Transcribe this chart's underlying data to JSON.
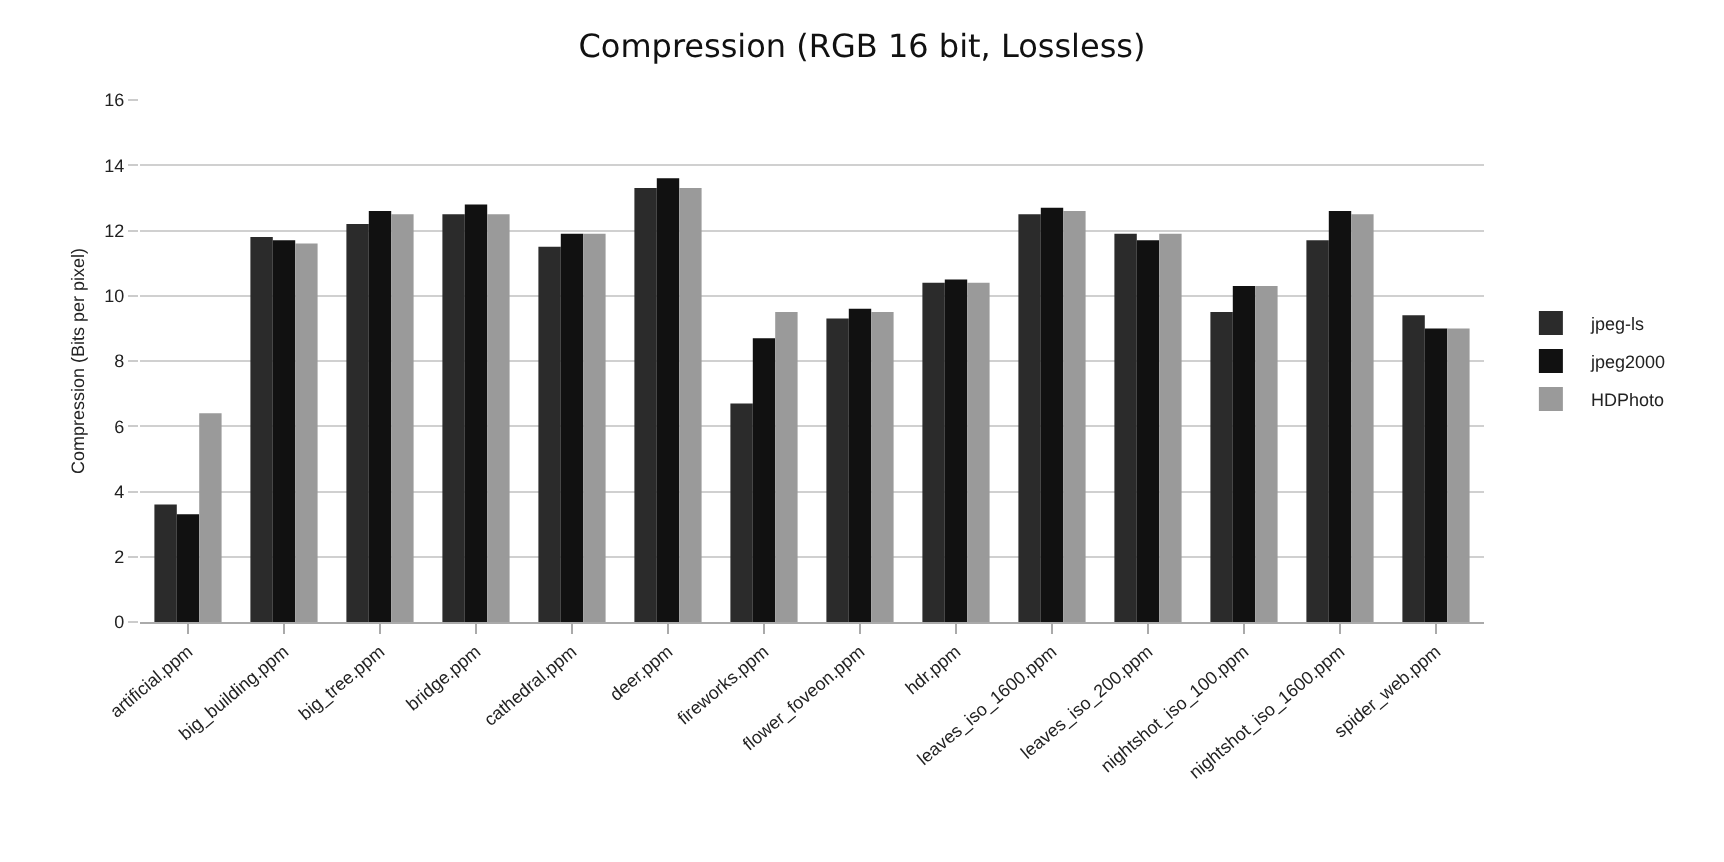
{
  "chart_data": {
    "type": "bar",
    "title": "Compression (RGB 16 bit, Lossless)",
    "ylabel": "Compression (Bits per pixel)",
    "categories": [
      "artificial.ppm",
      "big_building.ppm",
      "big_tree.ppm",
      "bridge.ppm",
      "cathedral.ppm",
      "deer.ppm",
      "fireworks.ppm",
      "flower_foveon.ppm",
      "hdr.ppm",
      "leaves_iso_1600.ppm",
      "leaves_iso_200.ppm",
      "nightshot_iso_100.ppm",
      "nightshot_iso_1600.ppm",
      "spider_web.ppm"
    ],
    "series": [
      {
        "name": "jpeg-ls",
        "color": "#2b2b2b",
        "values": [
          3.6,
          11.8,
          12.2,
          12.5,
          11.5,
          13.3,
          6.7,
          9.3,
          10.4,
          12.5,
          11.9,
          9.5,
          11.7,
          9.4
        ]
      },
      {
        "name": "jpeg2000",
        "color": "#111111",
        "values": [
          3.3,
          11.7,
          12.6,
          12.8,
          11.9,
          13.6,
          8.7,
          9.6,
          10.5,
          12.7,
          11.7,
          10.3,
          12.6,
          9.0
        ]
      },
      {
        "name": "HDPhoto",
        "color": "#9a9a9a",
        "values": [
          6.4,
          11.6,
          12.5,
          12.5,
          11.9,
          13.3,
          9.5,
          9.5,
          10.4,
          12.6,
          11.9,
          10.3,
          12.5,
          9.0
        ]
      }
    ],
    "ylim": [
      0,
      16
    ],
    "yticks": [
      0,
      2,
      4,
      6,
      8,
      10,
      12,
      14,
      16
    ],
    "grid": "y",
    "legend": "right"
  }
}
